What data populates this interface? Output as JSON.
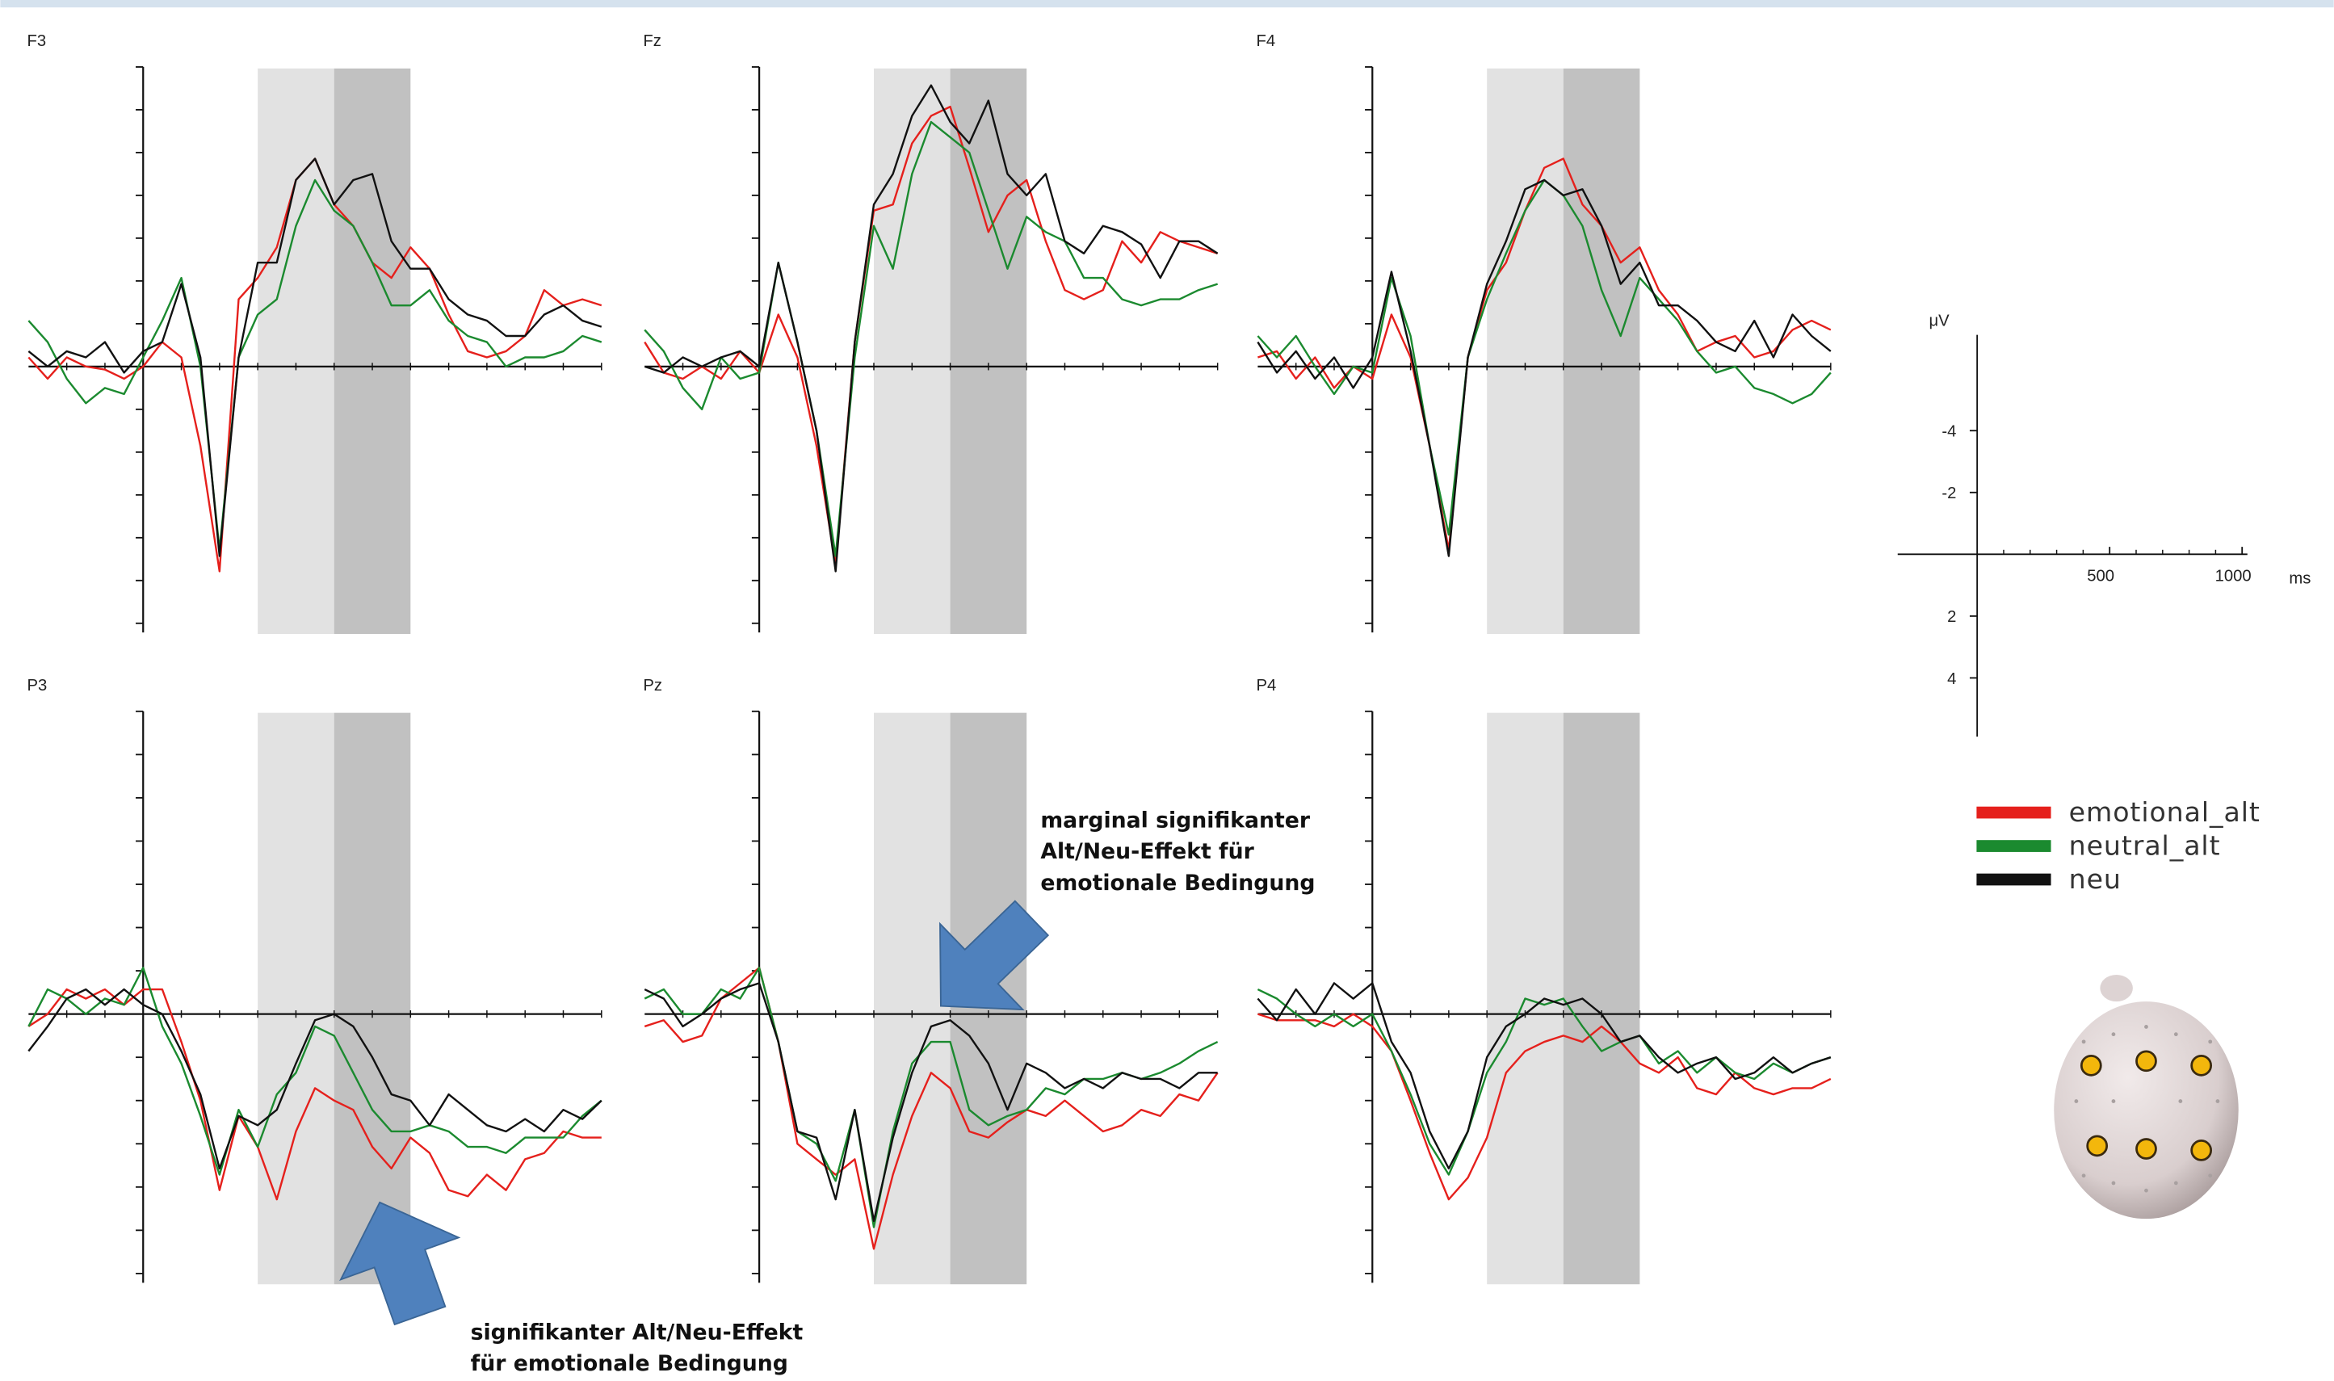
{
  "chart_data": [
    {
      "type": "line",
      "title": "F3",
      "x": [
        -300,
        -250,
        -200,
        -150,
        -100,
        -50,
        0,
        50,
        100,
        150,
        200,
        250,
        300,
        350,
        400,
        450,
        500,
        550,
        600,
        650,
        700,
        750,
        800,
        850,
        900,
        950,
        1000,
        1050,
        1100,
        1150,
        1200
      ],
      "xlim": [
        -300,
        1200
      ],
      "ylim": [
        8.7,
        -9.8
      ],
      "yticks": [
        -9.8,
        -8.4,
        -7,
        -5.6,
        -4.2,
        -2.8,
        -1.4,
        1.4,
        2.8,
        4.2,
        5.6,
        7,
        8.4
      ],
      "xticks": [
        -200,
        -100,
        100,
        200,
        300,
        400,
        500,
        600,
        700,
        800,
        900,
        1000,
        1100,
        1200
      ],
      "shaded": [
        {
          "from": 300,
          "to": 500,
          "color": "#e2e2e2"
        },
        {
          "from": 500,
          "to": 700,
          "color": "#c1c1c1"
        }
      ],
      "series": [
        {
          "color": "#e5201c",
          "values": [
            -0.3,
            0.4,
            -0.3,
            0,
            0.1,
            0.4,
            0,
            -0.8,
            -0.3,
            2.6,
            6.7,
            -2.2,
            -2.9,
            -3.9,
            -6.1,
            -6.8,
            -5.3,
            -4.6,
            -3.4,
            -2.9,
            -3.9,
            -3.2,
            -1.7,
            -0.5,
            -0.3,
            -0.5,
            -1,
            -2.5,
            -2,
            -2.2,
            -2
          ]
        },
        {
          "color": "#1b8a2f",
          "values": [
            -1.5,
            -0.8,
            0.4,
            1.2,
            0.7,
            0.9,
            -0.3,
            -1.5,
            -2.9,
            0,
            6,
            -0.3,
            -1.7,
            -2.2,
            -4.6,
            -6.1,
            -5.1,
            -4.6,
            -3.4,
            -2,
            -2,
            -2.5,
            -1.5,
            -1,
            -0.8,
            0,
            -0.3,
            -0.3,
            -0.5,
            -1,
            -0.8
          ]
        },
        {
          "color": "#111111",
          "values": [
            -0.5,
            0,
            -0.5,
            -0.3,
            -0.8,
            0.2,
            -0.5,
            -0.8,
            -2.7,
            -0.3,
            6.2,
            -0.3,
            -3.4,
            -3.4,
            -6.1,
            -6.8,
            -5.3,
            -6.1,
            -6.3,
            -4.1,
            -3.2,
            -3.2,
            -2.2,
            -1.7,
            -1.5,
            -1,
            -1,
            -1.7,
            -2,
            -1.5,
            -1.3
          ]
        }
      ]
    },
    {
      "type": "line",
      "title": "Fz",
      "x": [
        -300,
        -250,
        -200,
        -150,
        -100,
        -50,
        0,
        50,
        100,
        150,
        200,
        250,
        300,
        350,
        400,
        450,
        500,
        550,
        600,
        650,
        700,
        750,
        800,
        850,
        900,
        950,
        1000,
        1050,
        1100,
        1150,
        1200
      ],
      "xlim": [
        -300,
        1200
      ],
      "ylim": [
        8.7,
        -9.8
      ],
      "yticks": [
        -9.8,
        -8.4,
        -7,
        -5.6,
        -4.2,
        -2.8,
        -1.4,
        1.4,
        2.8,
        4.2,
        5.6,
        7,
        8.4
      ],
      "xticks": [
        -200,
        -100,
        100,
        200,
        300,
        400,
        500,
        600,
        700,
        800,
        900,
        1000,
        1100,
        1200
      ],
      "shaded": [
        {
          "from": 300,
          "to": 500,
          "color": "#e2e2e2"
        },
        {
          "from": 500,
          "to": 700,
          "color": "#c1c1c1"
        }
      ],
      "series": [
        {
          "color": "#e5201c",
          "values": [
            -0.8,
            0.2,
            0.4,
            0,
            0.4,
            -0.5,
            0.2,
            -1.7,
            -0.3,
            2.6,
            6.5,
            -0.8,
            -5.1,
            -5.3,
            -7.3,
            -8.2,
            -8.5,
            -6.5,
            -4.4,
            -5.6,
            -6.1,
            -4.1,
            -2.5,
            -2.2,
            -2.5,
            -4.1,
            -3.4,
            -4.4,
            -4.1,
            -3.9,
            -3.7
          ]
        },
        {
          "color": "#1b8a2f",
          "values": [
            -1.2,
            -0.5,
            0.7,
            1.4,
            -0.3,
            0.4,
            0.2,
            -3.4,
            -0.8,
            2.1,
            6.2,
            -0.3,
            -4.6,
            -3.2,
            -6.3,
            -8,
            -7.5,
            -7,
            -5.1,
            -3.2,
            -4.9,
            -4.4,
            -4.1,
            -2.9,
            -2.9,
            -2.2,
            -2,
            -2.2,
            -2.2,
            -2.5,
            -2.7
          ]
        },
        {
          "color": "#111111",
          "values": [
            0,
            0.2,
            -0.3,
            0,
            -0.3,
            -0.5,
            0,
            -3.4,
            -0.8,
            2.1,
            6.7,
            -0.8,
            -5.3,
            -6.3,
            -8.2,
            -9.2,
            -8,
            -7.3,
            -8.7,
            -6.3,
            -5.6,
            -6.3,
            -4.1,
            -3.7,
            -4.6,
            -4.4,
            -4,
            -2.9,
            -4.1,
            -4.1,
            -3.7
          ]
        }
      ]
    },
    {
      "type": "line",
      "title": "F4",
      "x": [
        -300,
        -250,
        -200,
        -150,
        -100,
        -50,
        0,
        50,
        100,
        150,
        200,
        250,
        300,
        350,
        400,
        450,
        500,
        550,
        600,
        650,
        700,
        750,
        800,
        850,
        900,
        950,
        1000,
        1050,
        1100,
        1150,
        1200
      ],
      "xlim": [
        -300,
        1200
      ],
      "ylim": [
        8.7,
        -9.8
      ],
      "yticks": [
        -9.8,
        -8.4,
        -7,
        -5.6,
        -4.2,
        -2.8,
        -1.4,
        1.4,
        2.8,
        4.2,
        5.6,
        7,
        8.4
      ],
      "xticks": [
        -200,
        -100,
        100,
        200,
        300,
        400,
        500,
        600,
        700,
        800,
        900,
        1000,
        1100,
        1200
      ],
      "shaded": [
        {
          "from": 300,
          "to": 500,
          "color": "#e2e2e2"
        },
        {
          "from": 500,
          "to": 700,
          "color": "#c1c1c1"
        }
      ],
      "series": [
        {
          "color": "#e5201c",
          "values": [
            -0.3,
            -0.5,
            0.4,
            -0.3,
            0.7,
            0,
            0.4,
            -1.7,
            -0.3,
            2.6,
            6,
            -0.3,
            -2.5,
            -3.4,
            -5.1,
            -6.5,
            -6.8,
            -5.3,
            -4.6,
            -3.4,
            -3.9,
            -2.5,
            -1.7,
            -0.5,
            -0.8,
            -1,
            -0.3,
            -0.5,
            -1.2,
            -1.5,
            -1.2
          ]
        },
        {
          "color": "#1b8a2f",
          "values": [
            -1,
            -0.3,
            -1,
            0,
            0.9,
            0,
            0.2,
            -2.9,
            -1,
            2.6,
            5.5,
            -0.3,
            -2.2,
            -3.7,
            -5.1,
            -6.1,
            -5.6,
            -4.6,
            -2.5,
            -1,
            -2.9,
            -2.2,
            -1.5,
            -0.5,
            0.2,
            0,
            0.7,
            0.9,
            1.2,
            0.9,
            0.2
          ]
        },
        {
          "color": "#111111",
          "values": [
            -0.8,
            0.2,
            -0.5,
            0.4,
            -0.3,
            0.7,
            -0.3,
            -3.1,
            -0.5,
            2.6,
            6.2,
            -0.3,
            -2.7,
            -4.1,
            -5.8,
            -6.1,
            -5.6,
            -5.8,
            -4.6,
            -2.7,
            -3.4,
            -2,
            -2,
            -1.5,
            -0.8,
            -0.5,
            -1.5,
            -0.3,
            -1.7,
            -1,
            -0.5
          ]
        }
      ]
    },
    {
      "type": "line",
      "title": "P3",
      "x": [
        -300,
        -250,
        -200,
        -150,
        -100,
        -50,
        0,
        50,
        100,
        150,
        200,
        250,
        300,
        350,
        400,
        450,
        500,
        550,
        600,
        650,
        700,
        750,
        800,
        850,
        900,
        950,
        1000,
        1050,
        1100,
        1150,
        1200
      ],
      "xlim": [
        -300,
        1200
      ],
      "ylim": [
        8.7,
        -9.8
      ],
      "yticks": [
        -9.8,
        -8.4,
        -7,
        -5.6,
        -4.2,
        -2.8,
        -1.4,
        1.4,
        2.8,
        4.2,
        5.6,
        7,
        8.4
      ],
      "xticks": [
        -200,
        -100,
        100,
        200,
        300,
        400,
        500,
        600,
        700,
        800,
        900,
        1000,
        1100,
        1200
      ],
      "shaded": [
        {
          "from": 300,
          "to": 500,
          "color": "#e2e2e2"
        },
        {
          "from": 500,
          "to": 700,
          "color": "#c1c1c1"
        }
      ],
      "series": [
        {
          "color": "#e5201c",
          "values": [
            0.4,
            0,
            -0.8,
            -0.5,
            -0.8,
            -0.3,
            -0.8,
            -0.8,
            0.9,
            2.8,
            5.7,
            3.3,
            4.3,
            6,
            3.8,
            2.4,
            2.8,
            3.1,
            4.3,
            5,
            4,
            4.5,
            5.7,
            5.9,
            5.2,
            5.7,
            4.7,
            4.5,
            3.8,
            4,
            4
          ]
        },
        {
          "color": "#1b8a2f",
          "values": [
            0.4,
            -0.8,
            -0.5,
            0,
            -0.5,
            -0.3,
            -1.5,
            0.4,
            1.6,
            3.3,
            5.2,
            3.1,
            4.3,
            2.6,
            1.9,
            0.4,
            0.7,
            1.9,
            3.1,
            3.8,
            3.8,
            3.6,
            3.8,
            4.3,
            4.3,
            4.5,
            4,
            4,
            4,
            3.3,
            2.8
          ]
        },
        {
          "color": "#111111",
          "values": [
            1.2,
            0.4,
            -0.5,
            -0.8,
            -0.3,
            -0.8,
            -0.3,
            0,
            1.2,
            2.6,
            5,
            3.3,
            3.6,
            3.1,
            1.6,
            0.2,
            0,
            0.4,
            1.4,
            2.6,
            2.8,
            3.6,
            2.6,
            3.1,
            3.6,
            3.8,
            3.4,
            3.8,
            3.1,
            3.4,
            2.8
          ]
        }
      ]
    },
    {
      "type": "line",
      "title": "Pz",
      "x": [
        -300,
        -250,
        -200,
        -150,
        -100,
        -50,
        0,
        50,
        100,
        150,
        200,
        250,
        300,
        350,
        400,
        450,
        500,
        550,
        600,
        650,
        700,
        750,
        800,
        850,
        900,
        950,
        1000,
        1050,
        1100,
        1150,
        1200
      ],
      "xlim": [
        -300,
        1200
      ],
      "ylim": [
        8.7,
        -9.8
      ],
      "yticks": [
        -9.8,
        -8.4,
        -7,
        -5.6,
        -4.2,
        -2.8,
        -1.4,
        1.4,
        2.8,
        4.2,
        5.6,
        7,
        8.4
      ],
      "xticks": [
        -200,
        -100,
        100,
        200,
        300,
        400,
        500,
        600,
        700,
        800,
        900,
        1000,
        1100,
        1200
      ],
      "shaded": [
        {
          "from": 300,
          "to": 500,
          "color": "#e2e2e2"
        },
        {
          "from": 500,
          "to": 700,
          "color": "#c1c1c1"
        }
      ],
      "series": [
        {
          "color": "#e5201c",
          "values": [
            0.4,
            0.2,
            0.9,
            0.7,
            -0.5,
            -1,
            -1.5,
            0.9,
            4.2,
            4.7,
            5.2,
            4.7,
            7.6,
            5.2,
            3.3,
            1.9,
            2.4,
            3.8,
            4,
            3.5,
            3.1,
            3.3,
            2.8,
            3.3,
            3.8,
            3.6,
            3.1,
            3.3,
            2.6,
            2.8,
            1.9
          ]
        },
        {
          "color": "#1b8a2f",
          "values": [
            -0.5,
            -0.8,
            0,
            0,
            -0.8,
            -0.5,
            -1.5,
            0.9,
            3.8,
            4.2,
            5.4,
            3.1,
            6.9,
            3.8,
            1.6,
            0.9,
            0.9,
            3.1,
            3.6,
            3.3,
            3.1,
            2.4,
            2.6,
            2.1,
            2.1,
            1.9,
            2.1,
            1.9,
            1.6,
            1.2,
            0.9
          ]
        },
        {
          "color": "#111111",
          "values": [
            -0.8,
            -0.5,
            0.4,
            0,
            -0.5,
            -0.8,
            -1,
            0.9,
            3.8,
            4,
            6,
            3.1,
            6.7,
            4,
            1.9,
            0.4,
            0.2,
            0.7,
            1.6,
            3.1,
            1.6,
            1.9,
            2.4,
            2.1,
            2.4,
            1.9,
            2.1,
            2.1,
            2.4,
            1.9,
            1.9
          ]
        }
      ]
    },
    {
      "type": "line",
      "title": "P4",
      "x": [
        -300,
        -250,
        -200,
        -150,
        -100,
        -50,
        0,
        50,
        100,
        150,
        200,
        250,
        300,
        350,
        400,
        450,
        500,
        550,
        600,
        650,
        700,
        750,
        800,
        850,
        900,
        950,
        1000,
        1050,
        1100,
        1150,
        1200
      ],
      "xlim": [
        -300,
        1200
      ],
      "ylim": [
        8.7,
        -9.8
      ],
      "yticks": [
        -9.8,
        -8.4,
        -7,
        -5.6,
        -4.2,
        -2.8,
        -1.4,
        1.4,
        2.8,
        4.2,
        5.6,
        7,
        8.4
      ],
      "xticks": [
        -200,
        -100,
        100,
        200,
        300,
        400,
        500,
        600,
        700,
        800,
        900,
        1000,
        1100,
        1200
      ],
      "shaded": [
        {
          "from": 300,
          "to": 500,
          "color": "#e2e2e2"
        },
        {
          "from": 500,
          "to": 700,
          "color": "#c1c1c1"
        }
      ],
      "series": [
        {
          "color": "#e5201c",
          "values": [
            0,
            0.2,
            0.2,
            0.2,
            0.4,
            0,
            0.4,
            1.2,
            2.8,
            4.5,
            6,
            5.3,
            4,
            1.9,
            1.2,
            0.9,
            0.7,
            0.9,
            0.4,
            0.9,
            1.6,
            1.9,
            1.4,
            2.4,
            2.6,
            1.9,
            2.4,
            2.6,
            2.4,
            2.4,
            2.1
          ]
        },
        {
          "color": "#1b8a2f",
          "values": [
            -0.8,
            -0.5,
            0,
            0.4,
            0,
            0.4,
            0,
            1.2,
            2.6,
            4.2,
            5.2,
            3.8,
            1.9,
            0.9,
            -0.5,
            -0.3,
            -0.5,
            0.4,
            1.2,
            0.9,
            0.7,
            1.6,
            1.2,
            1.9,
            1.4,
            1.9,
            2.1,
            1.6,
            1.9,
            1.6,
            1.4
          ]
        },
        {
          "color": "#111111",
          "values": [
            -0.5,
            0.2,
            -0.8,
            0,
            -1,
            -0.5,
            -1,
            0.9,
            1.9,
            3.8,
            5,
            3.8,
            1.4,
            0.4,
            0,
            -0.5,
            -0.3,
            -0.5,
            0,
            0.9,
            0.7,
            1.4,
            1.9,
            1.6,
            1.4,
            2.1,
            1.9,
            1.4,
            1.9,
            1.6,
            1.4
          ]
        }
      ]
    },
    {
      "type": "scale",
      "y_label": "μV",
      "x_label": "ms",
      "xlim": [
        -300,
        1020
      ],
      "ylim": [
        5.9,
        -7.1
      ],
      "yticks": [
        -4,
        -2,
        2,
        4
      ],
      "xticks": [
        500,
        1000
      ],
      "x_minor_ticks": [
        100,
        200,
        300,
        400,
        600,
        700,
        800,
        900
      ]
    }
  ],
  "legend": [
    {
      "name": "emotional_alt",
      "color": "#e5201c"
    },
    {
      "name": "neutral_alt",
      "color": "#1b8a2f"
    },
    {
      "name": "neu",
      "color": "#111111"
    }
  ],
  "annotations": [
    {
      "lines": [
        "marginal signifikanter",
        "Alt/Neu-Effekt für",
        "emotionale Bedingung"
      ]
    },
    {
      "lines": [
        "signifikanter Alt/Neu-Effekt",
        "für emotionale Bedingung"
      ]
    }
  ]
}
